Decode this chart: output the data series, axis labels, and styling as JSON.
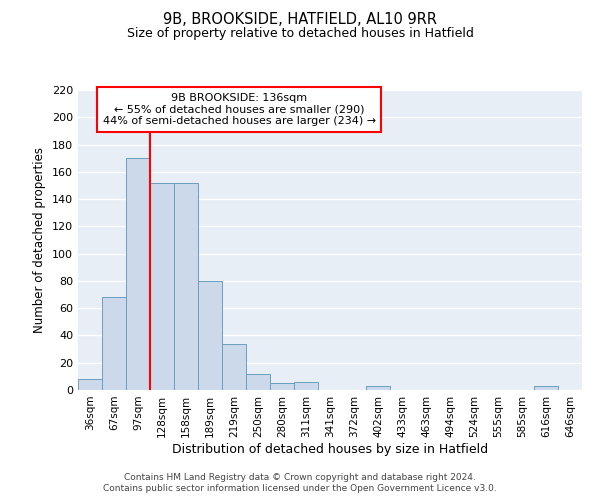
{
  "title_line1": "9B, BROOKSIDE, HATFIELD, AL10 9RR",
  "title_line2": "Size of property relative to detached houses in Hatfield",
  "xlabel": "Distribution of detached houses by size in Hatfield",
  "ylabel": "Number of detached properties",
  "categories": [
    "36sqm",
    "67sqm",
    "97sqm",
    "128sqm",
    "158sqm",
    "189sqm",
    "219sqm",
    "250sqm",
    "280sqm",
    "311sqm",
    "341sqm",
    "372sqm",
    "402sqm",
    "433sqm",
    "463sqm",
    "494sqm",
    "524sqm",
    "555sqm",
    "585sqm",
    "616sqm",
    "646sqm"
  ],
  "values": [
    8,
    68,
    170,
    152,
    152,
    80,
    34,
    12,
    5,
    6,
    0,
    0,
    3,
    0,
    0,
    0,
    0,
    0,
    0,
    3,
    0
  ],
  "bar_color": "#ccd9ea",
  "bar_edge_color": "#6a9ec0",
  "vline_x": 3.0,
  "vline_color": "red",
  "annotation_text": "9B BROOKSIDE: 136sqm\n← 55% of detached houses are smaller (290)\n44% of semi-detached houses are larger (234) →",
  "annotation_box_color": "white",
  "annotation_box_edge": "red",
  "ylim": [
    0,
    220
  ],
  "yticks": [
    0,
    20,
    40,
    60,
    80,
    100,
    120,
    140,
    160,
    180,
    200,
    220
  ],
  "background_color": "#e8eef6",
  "grid_color": "white",
  "footer_line1": "Contains HM Land Registry data © Crown copyright and database right 2024.",
  "footer_line2": "Contains public sector information licensed under the Open Government Licence v3.0."
}
